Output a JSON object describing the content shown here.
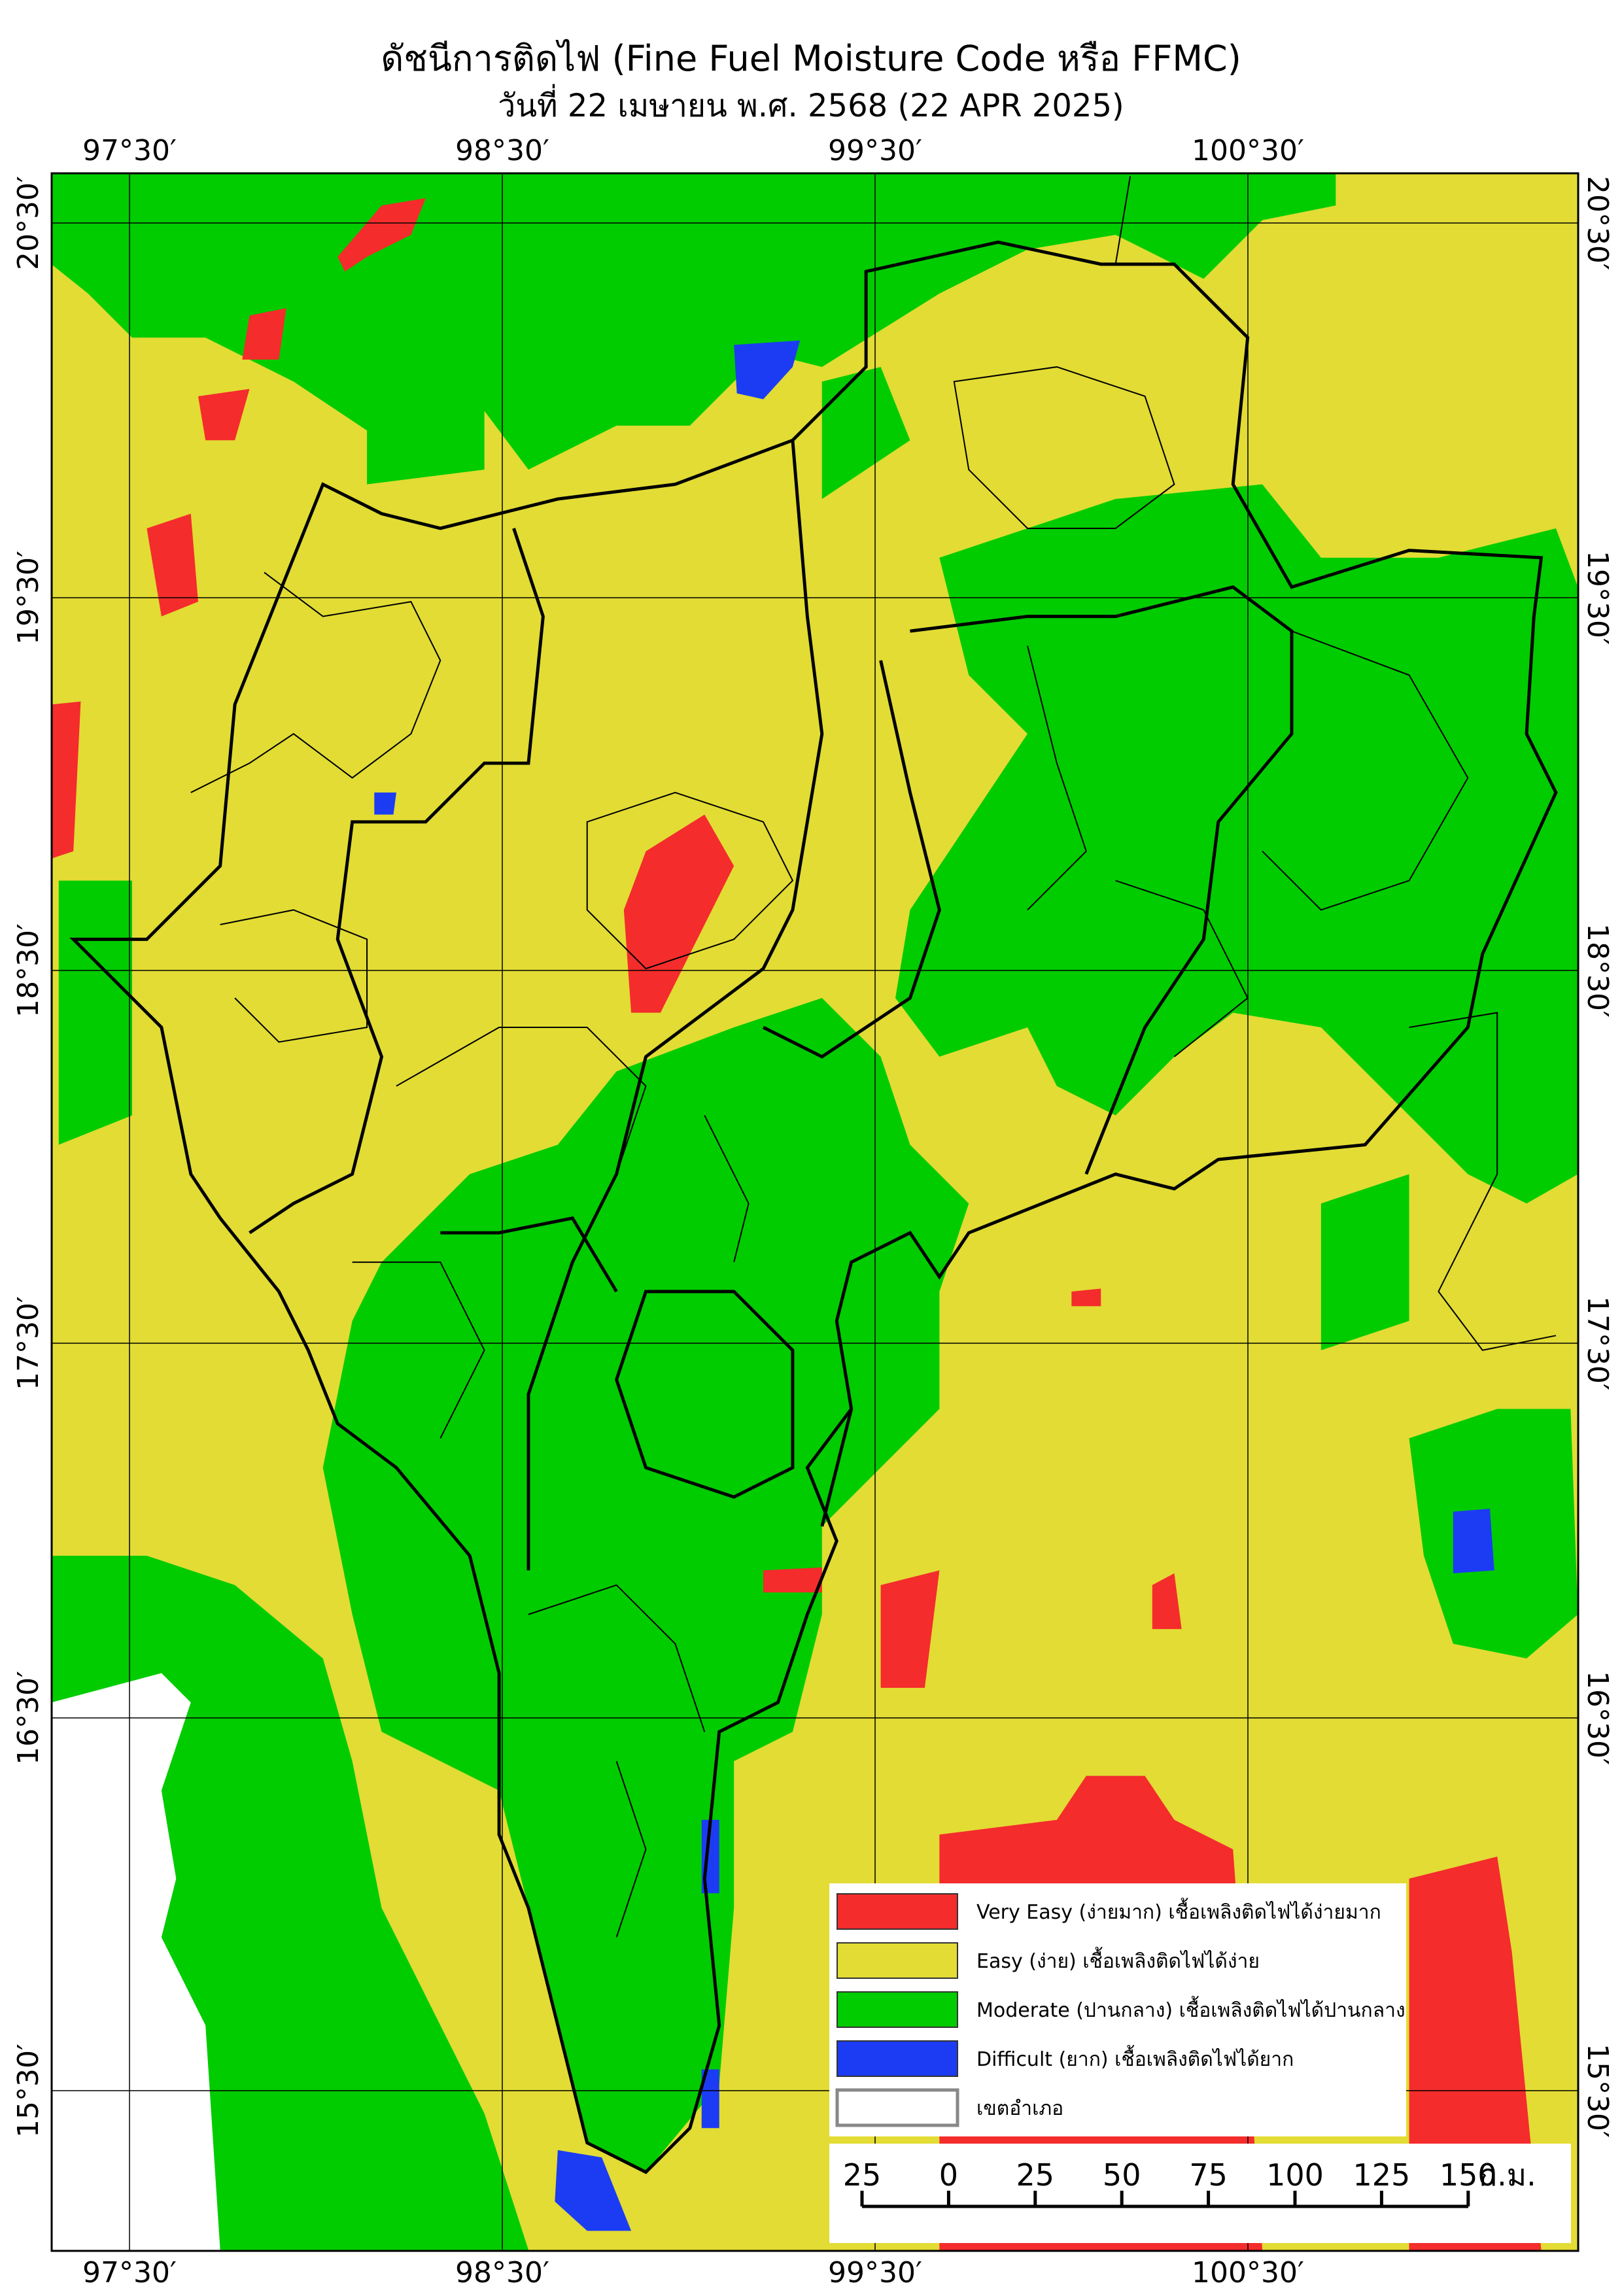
{
  "header": {
    "title": "ดัชนีการติดไฟ (Fine Fuel Moisture Code หรือ FFMC)",
    "subtitle": "วันที่ 22 เมษายน พ.ศ. 2568 (22 APR 2025)"
  },
  "map": {
    "lon_labels": [
      "97°30′",
      "98°30′",
      "99°30′",
      "100°30′"
    ],
    "lat_labels": [
      "20°30′",
      "19°30′",
      "18°30′",
      "17°30′",
      "16°30′",
      "15°30′"
    ]
  },
  "legend": {
    "items": [
      {
        "label": "Very Easy (ง่ายมาก) เชื้อเพลิงติดไฟได้ง่ายมาก"
      },
      {
        "label": "Easy (ง่าย) เชื้อเพลิงติดไฟได้ง่าย"
      },
      {
        "label": "Moderate (ปานกลาง) เชื้อเพลิงติดไฟได้ปานกลาง"
      },
      {
        "label": "Difficult (ยาก) เชื้อเพลิงติดไฟได้ยาก"
      },
      {
        "label": "เขตอำเภอ"
      }
    ]
  },
  "scale_bar": {
    "labels": [
      "25",
      "0",
      "25",
      "50",
      "75",
      "100",
      "125",
      "150"
    ],
    "unit": "ก.ม."
  }
}
